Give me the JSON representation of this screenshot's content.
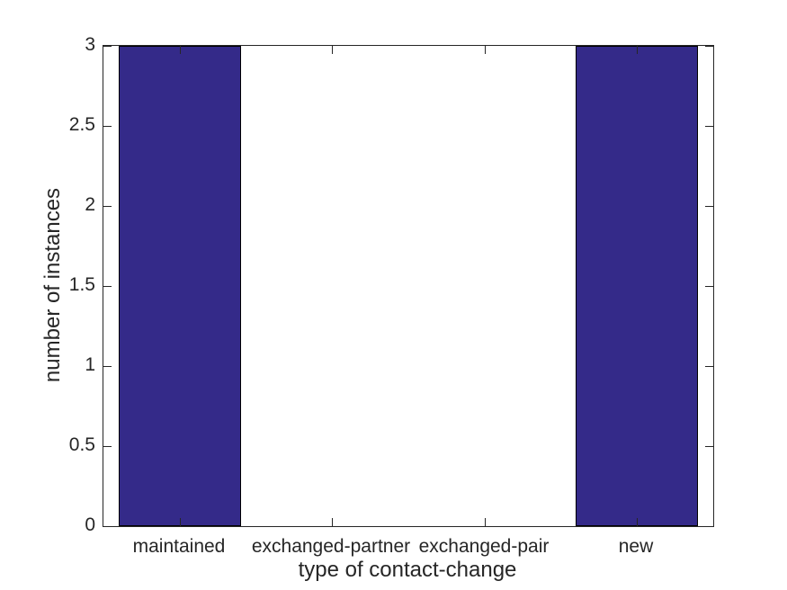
{
  "figure": {
    "background": "#ffffff"
  },
  "chart_data": {
    "type": "bar",
    "categories": [
      "maintained",
      "exchanged-partner",
      "exchanged-pair",
      "new"
    ],
    "values": [
      3,
      0,
      0,
      3
    ],
    "title": "",
    "xlabel": "type of contact-change",
    "ylabel": "number of instances",
    "xlim": [
      0.5,
      4.5
    ],
    "ylim": [
      0,
      3
    ],
    "yticks": [
      0,
      0.5,
      1,
      1.5,
      2,
      2.5,
      3
    ],
    "ytick_labels": [
      "0",
      "0.5",
      "1",
      "1.5",
      "2",
      "2.5",
      "3"
    ],
    "bar_color": "#342a89",
    "bar_edge_color": "#000000",
    "axis_color": "#262626",
    "text_color": "#262626",
    "bar_width_fraction": 0.8,
    "tick_direction": "in",
    "grid": false,
    "legend": null
  }
}
